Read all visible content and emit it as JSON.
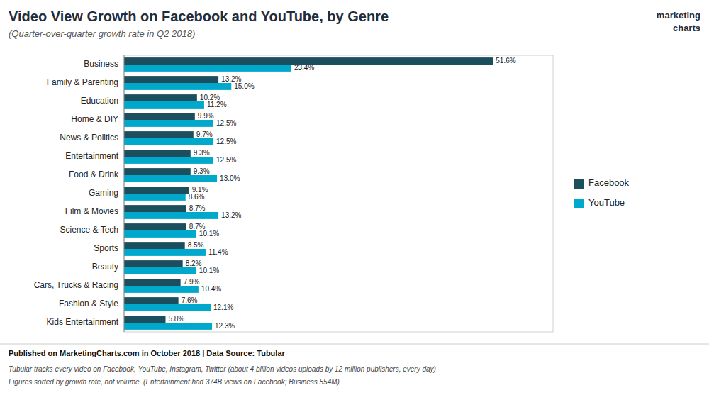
{
  "chart_data": {
    "type": "bar",
    "orientation": "horizontal",
    "title": "Video View Growth on Facebook and YouTube, by Genre",
    "subtitle": "(Quarter-over-quarter growth rate in Q2 2018)",
    "annotations": [
      "Published on MarketingCharts.com in October 2018 | Data Source: Tubular",
      "Tubular tracks every video on Facebook, YouTube, Instagram, Twitter (about 4 billion videos uploads by 12 million publishers, every day)",
      "Figures sorted by growth rate, not volume. (Entertainment had 374B views on Facebook; Business 554M)",
      "marketing",
      "charts"
    ],
    "categories": [
      "Kids Entertainment",
      "Fashion & Style",
      "Cars, Trucks & Racing",
      "Beauty",
      "Sports",
      "Science & Tech",
      "Film & Movies",
      "Gaming",
      "Food & Drink",
      "Entertainment",
      "News & Politics",
      "Home & DIY",
      "Education",
      "Family & Parenting",
      "Business"
    ],
    "series": [
      {
        "name": "Facebook",
        "color": "#1c4f5e",
        "values": [
          5.8,
          7.6,
          7.9,
          8.2,
          8.5,
          8.7,
          8.7,
          9.1,
          9.3,
          9.3,
          9.7,
          9.9,
          10.2,
          13.2,
          51.6
        ],
        "value_labels": [
          "5.8%",
          "7.6%",
          "7.9%",
          "8.2%",
          "8.5%",
          "8.7%",
          "8.7%",
          "9.1%",
          "9.3%",
          "9.3%",
          "9.7%",
          "9.9%",
          "10.2%",
          "13.2%",
          "51.6%"
        ]
      },
      {
        "name": "YouTube",
        "color": "#00a8cc",
        "values": [
          12.3,
          12.1,
          10.4,
          10.1,
          11.4,
          10.1,
          13.2,
          8.6,
          13.0,
          12.5,
          12.5,
          12.5,
          11.2,
          15.0,
          23.4
        ],
        "value_labels": [
          "12.3%",
          "12.1%",
          "10.4%",
          "10.1%",
          "11.4%",
          "10.1%",
          "13.2%",
          "8.6%",
          "13.0%",
          "12.5%",
          "12.5%",
          "12.5%",
          "11.2%",
          "15.0%",
          "23.4%"
        ]
      }
    ],
    "xlim": [
      0,
      60
    ],
    "data_labels": true,
    "tick_labels": "y",
    "grid": false,
    "legend": "right"
  }
}
